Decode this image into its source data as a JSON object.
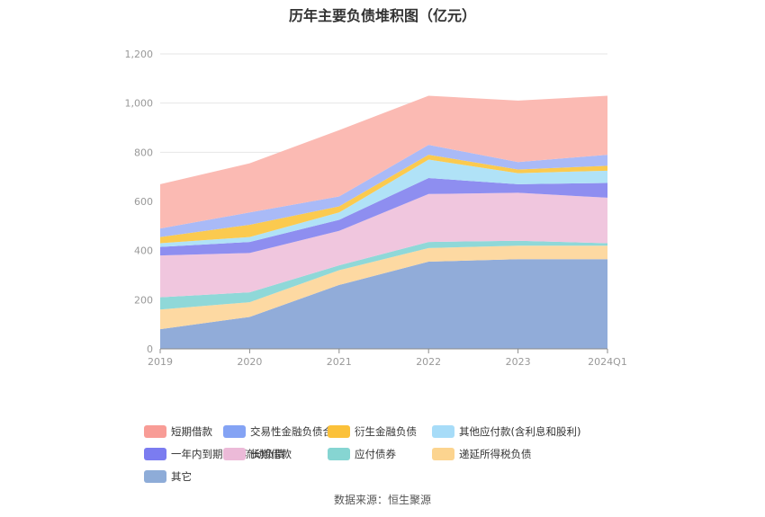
{
  "page": {
    "title": "历年主要负债堆积图（亿元）",
    "source": "数据来源：恒生聚源"
  },
  "chart_data": {
    "type": "area",
    "stacked": true,
    "title": "历年主要负债堆积图（亿元）",
    "categories": [
      "2019",
      "2020",
      "2021",
      "2022",
      "2023",
      "2024Q1"
    ],
    "ylim": [
      0,
      1200
    ],
    "yticks": [
      0,
      200,
      400,
      600,
      800,
      1000,
      1200
    ],
    "ytick_labels": [
      "0",
      "200",
      "400",
      "600",
      "800",
      "1,000",
      "1,200"
    ],
    "grid": true,
    "legend_position": "bottom",
    "series": [
      {
        "name": "其它",
        "color": "#91acd9",
        "values": [
          80,
          130,
          260,
          355,
          365,
          365
        ]
      },
      {
        "name": "递延所得税负债",
        "color": "#fdd9a2",
        "values": [
          80,
          60,
          60,
          55,
          55,
          55
        ]
      },
      {
        "name": "应付债券",
        "color": "#8fd8d8",
        "values": [
          50,
          40,
          20,
          25,
          20,
          10
        ]
      },
      {
        "name": "长期借款",
        "color": "#f0c6de",
        "values": [
          170,
          160,
          140,
          195,
          195,
          185
        ]
      },
      {
        "name": "一年内到期的非流动负债",
        "color": "#8e8ef0",
        "values": [
          35,
          45,
          45,
          65,
          35,
          60
        ]
      },
      {
        "name": "其他应付款(含利息和股利)",
        "color": "#b0e2f7",
        "values": [
          15,
          20,
          30,
          75,
          45,
          50
        ]
      },
      {
        "name": "衍生金融负债",
        "color": "#fbca4f",
        "values": [
          25,
          50,
          25,
          20,
          15,
          20
        ]
      },
      {
        "name": "交易性金融负债合计",
        "color": "#a9baf7",
        "values": [
          35,
          50,
          40,
          40,
          30,
          45
        ]
      },
      {
        "name": "短期借款",
        "color": "#fbbab3",
        "values": [
          180,
          200,
          270,
          200,
          250,
          240
        ]
      }
    ]
  },
  "legend": {
    "items": [
      {
        "label": "短期借款",
        "color": "#f89c96"
      },
      {
        "label": "交易性金融负债合计",
        "color": "#84a3f4"
      },
      {
        "label": "衍生金融负债",
        "color": "#fbc13a"
      },
      {
        "label": "其他应付款(含利息和股利)",
        "color": "#a7dcf8"
      },
      {
        "label": "一年内到期的非流动负债",
        "color": "#7b7cf0"
      },
      {
        "label": "长期借款",
        "color": "#ecbad8"
      },
      {
        "label": "应付债券",
        "color": "#86d5d2"
      },
      {
        "label": "递延所得税负债",
        "color": "#fcd48f"
      },
      {
        "label": "其它",
        "color": "#8eacd8"
      }
    ]
  }
}
